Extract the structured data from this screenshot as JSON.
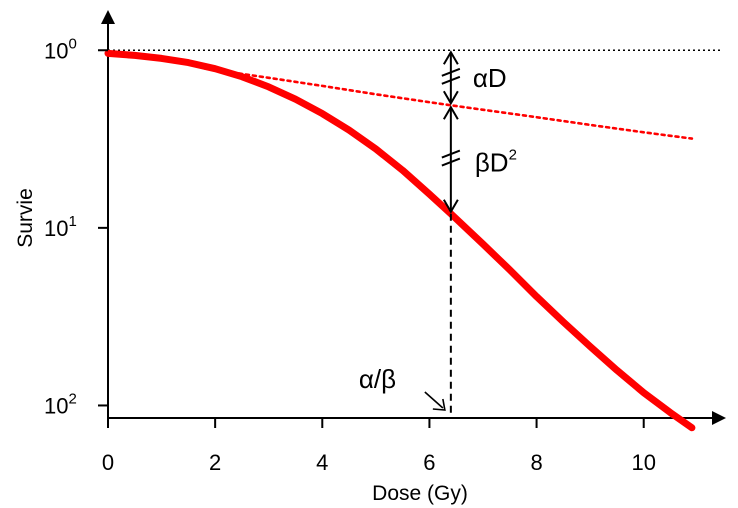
{
  "chart_data": {
    "type": "line",
    "xlabel": "Dose (Gy)",
    "ylabel": "Survie",
    "x_ticks": [
      0,
      2,
      4,
      6,
      8,
      10
    ],
    "y_ticks": [
      {
        "value": 1,
        "base": "10",
        "exp": "0"
      },
      {
        "value": 0.1,
        "base": "10",
        "exp": "1"
      },
      {
        "value": 0.01,
        "base": "10",
        "exp": "2"
      }
    ],
    "xlim": [
      0,
      11.2
    ],
    "ylim": [
      0.0085,
      1.6
    ],
    "log_y": true,
    "grid": false,
    "reference_line": {
      "y": 1,
      "style": "dotted",
      "color": "#000000"
    },
    "series": [
      {
        "style": "solid",
        "color": "#ff0000",
        "x": [
          0,
          0.5,
          1,
          1.5,
          2,
          2.5,
          3,
          3.5,
          4,
          4.5,
          5,
          5.5,
          6,
          6.4,
          7,
          7.5,
          8,
          8.5,
          9,
          9.5,
          10,
          10.5,
          10.9
        ],
        "y": [
          0.96,
          0.935,
          0.9,
          0.852,
          0.787,
          0.71,
          0.622,
          0.53,
          0.44,
          0.355,
          0.278,
          0.211,
          0.155,
          0.12,
          0.081,
          0.058,
          0.041,
          0.0295,
          0.0215,
          0.0158,
          0.0118,
          0.0091,
          0.0075
        ]
      },
      {
        "style": "dotted",
        "color": "#ff0000",
        "x": [
          1.8,
          3,
          4,
          5,
          6,
          6.4,
          8,
          9,
          10,
          10.9
        ],
        "y": [
          0.79,
          0.7,
          0.63,
          0.565,
          0.51,
          0.49,
          0.42,
          0.38,
          0.345,
          0.318
        ]
      }
    ],
    "annotations": {
      "alpha_beta_dose": 6.4,
      "alpha_label": "αD",
      "beta_label_base": "βD",
      "beta_label_exp": "2",
      "ratio_label": "α/β"
    },
    "colors": {
      "curve": "#ff0000",
      "axis": "#000000"
    }
  }
}
